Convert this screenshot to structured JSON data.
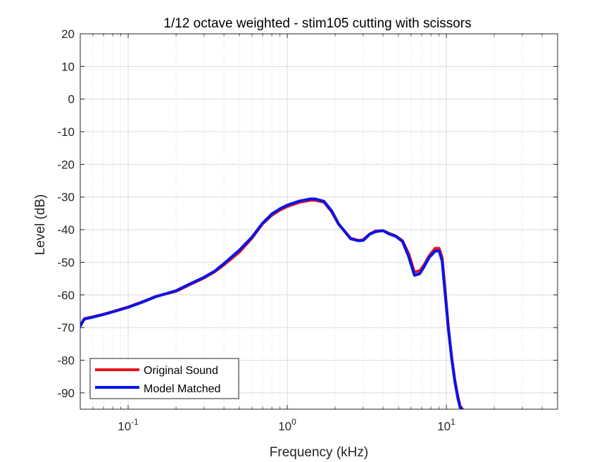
{
  "chart_data": {
    "type": "line",
    "title": "1/12 octave weighted - stim105 cutting with scissors",
    "xlabel": "Frequency (kHz)",
    "ylabel": "Level (dB)",
    "xscale": "log",
    "xlim": [
      0.05,
      50
    ],
    "ylim": [
      -95,
      20
    ],
    "yticks": [
      20,
      10,
      0,
      -10,
      -20,
      -30,
      -40,
      -50,
      -60,
      -70,
      -80,
      -90
    ],
    "xtick_labels": [
      {
        "value": 0.1,
        "base": "10",
        "exp": "-1"
      },
      {
        "value": 1,
        "base": "10",
        "exp": "0"
      },
      {
        "value": 10,
        "base": "10",
        "exp": "1"
      }
    ],
    "grid": true,
    "minor_grid": true,
    "legend_position": "bottom-left",
    "series": [
      {
        "name": "Original Sound",
        "color": "#e8141b",
        "x": [
          0.05,
          0.053,
          0.06,
          0.07,
          0.08,
          0.1,
          0.12,
          0.15,
          0.2,
          0.25,
          0.3,
          0.35,
          0.4,
          0.5,
          0.6,
          0.7,
          0.8,
          0.9,
          1.0,
          1.2,
          1.4,
          1.5,
          1.7,
          1.9,
          2.1,
          2.5,
          2.8,
          3.0,
          3.3,
          3.6,
          4.0,
          4.4,
          4.8,
          5.3,
          5.8,
          6.3,
          6.8,
          7.2,
          7.8,
          8.5,
          9.0,
          9.4,
          9.8,
          10.3,
          10.8,
          11.3,
          11.8,
          12.2,
          12.6
        ],
        "y": [
          -69.3,
          -67.3,
          -66.7,
          -65.9,
          -65.1,
          -63.7,
          -62.3,
          -60.4,
          -58.9,
          -56.6,
          -54.8,
          -52.9,
          -50.8,
          -46.9,
          -42.6,
          -38.2,
          -35.6,
          -34.0,
          -32.9,
          -31.6,
          -31.0,
          -31.0,
          -31.6,
          -34.5,
          -38.3,
          -42.6,
          -43.3,
          -43.1,
          -41.3,
          -40.4,
          -40.3,
          -41.2,
          -41.9,
          -43.4,
          -47.4,
          -53.0,
          -52.6,
          -51.0,
          -48.0,
          -45.7,
          -45.7,
          -48.5,
          -58.0,
          -70.0,
          -79.0,
          -86.0,
          -91.0,
          -94.0,
          -95.0
        ]
      },
      {
        "name": "Model Matched",
        "color": "#0a14e6",
        "x": [
          0.05,
          0.053,
          0.06,
          0.07,
          0.08,
          0.1,
          0.12,
          0.15,
          0.2,
          0.25,
          0.3,
          0.35,
          0.4,
          0.5,
          0.6,
          0.7,
          0.8,
          0.9,
          1.0,
          1.2,
          1.4,
          1.5,
          1.7,
          1.9,
          2.1,
          2.5,
          2.8,
          3.0,
          3.3,
          3.6,
          4.0,
          4.4,
          4.8,
          5.3,
          5.8,
          6.3,
          6.8,
          7.2,
          7.8,
          8.5,
          9.0,
          9.4,
          9.8,
          10.3,
          10.8,
          11.3,
          11.8,
          12.2,
          12.6
        ],
        "y": [
          -69.5,
          -67.4,
          -66.8,
          -66.0,
          -65.2,
          -63.8,
          -62.4,
          -60.5,
          -58.7,
          -56.4,
          -54.6,
          -52.7,
          -50.4,
          -46.3,
          -42.3,
          -38.0,
          -35.2,
          -33.6,
          -32.5,
          -31.2,
          -30.6,
          -30.6,
          -31.3,
          -34.2,
          -38.2,
          -42.8,
          -43.4,
          -43.3,
          -41.4,
          -40.6,
          -40.3,
          -41.4,
          -42.0,
          -43.6,
          -48.3,
          -54.0,
          -53.5,
          -51.6,
          -48.5,
          -46.6,
          -46.5,
          -49.5,
          -59.0,
          -70.5,
          -79.5,
          -86.5,
          -91.5,
          -94.5,
          -95.0
        ]
      }
    ]
  }
}
